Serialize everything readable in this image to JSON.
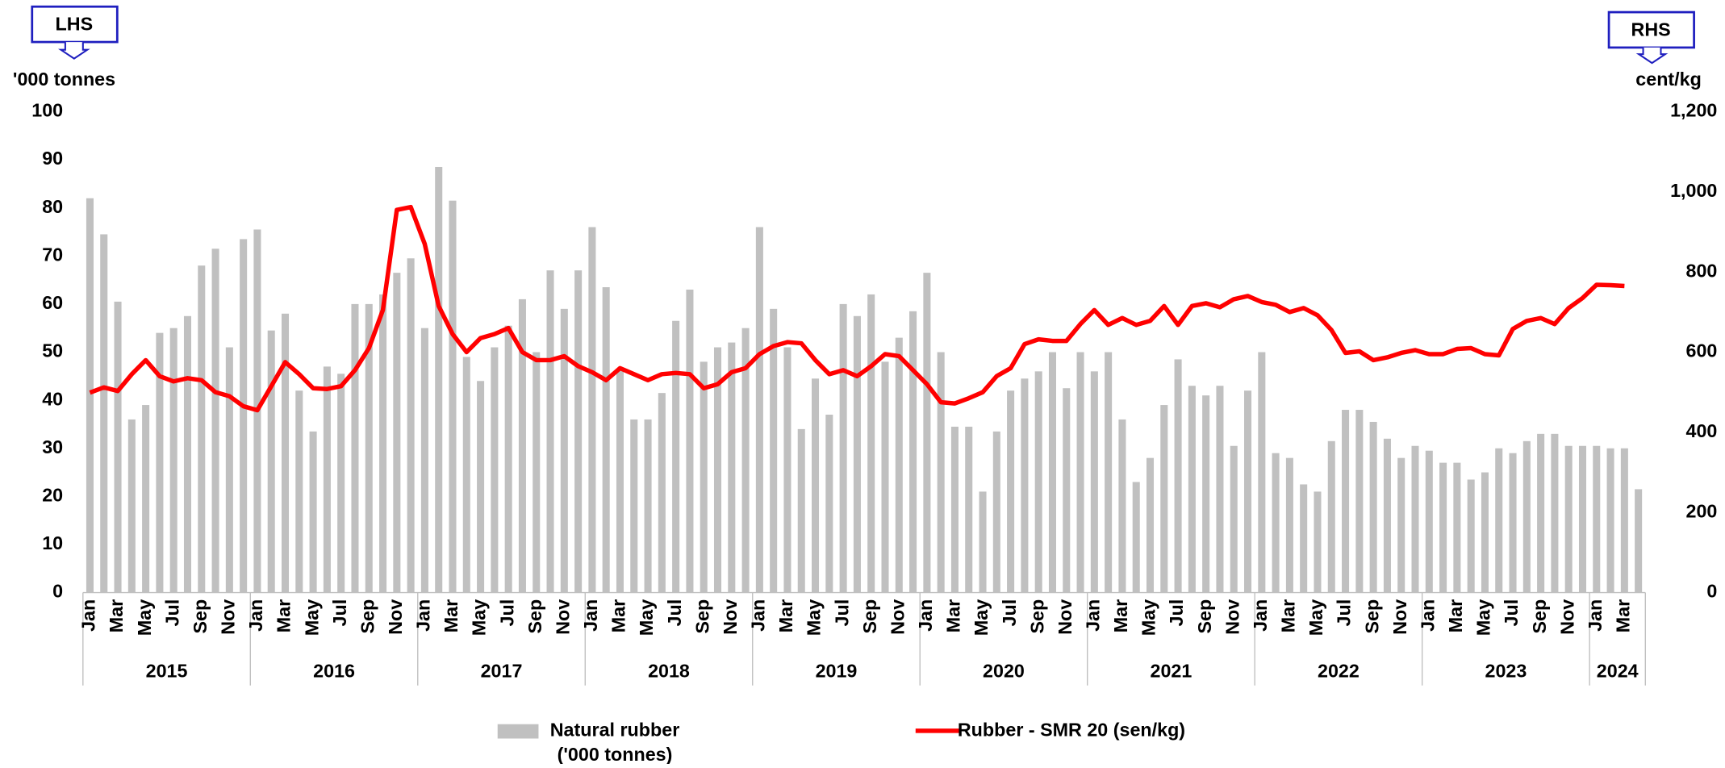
{
  "chart_data": {
    "type": "bar_line",
    "left_axis_tag": "LHS",
    "right_axis_tag": "RHS",
    "ylabel": "'000 tonnes",
    "y2label": "cent/kg",
    "categories": [
      "Jan",
      null,
      "Mar",
      null,
      "May",
      null,
      "Jul",
      null,
      "Sep",
      null,
      "Nov",
      null,
      "Jan",
      null,
      "Mar",
      null,
      "May",
      null,
      "Jul",
      null,
      "Sep",
      null,
      "Nov",
      null,
      "Jan",
      null,
      "Mar",
      null,
      "May",
      null,
      "Jul",
      null,
      "Sep",
      null,
      "Nov",
      null,
      "Jan",
      null,
      "Mar",
      null,
      "May",
      null,
      "Jul",
      null,
      "Sep",
      null,
      "Nov",
      null,
      "Jan",
      null,
      "Mar",
      null,
      "May",
      null,
      "Jul",
      null,
      "Sep",
      null,
      "Nov",
      null,
      "Jan",
      null,
      "Mar",
      null,
      "May",
      null,
      "Jul",
      null,
      "Sep",
      null,
      "Nov",
      null,
      "Jan",
      null,
      "Mar",
      null,
      "May",
      null,
      "Jul",
      null,
      "Sep",
      null,
      "Nov",
      null,
      "Jan",
      null,
      "Mar",
      null,
      "May",
      null,
      "Jul",
      null,
      "Sep",
      null,
      "Nov",
      null,
      "Jan",
      null,
      "Mar",
      null,
      "May",
      null,
      "Jul",
      null,
      "Sep",
      null,
      "Nov",
      null,
      "Jan",
      null,
      "Mar",
      null
    ],
    "years": [
      "2015",
      "2016",
      "2017",
      "2018",
      "2019",
      "2020",
      "2021",
      "2022",
      "2023",
      "2024"
    ],
    "series": [
      {
        "name": "Natural rubber ('000 tonnes)",
        "type": "bar",
        "color": "#c0c0c0",
        "axis": "y",
        "values": [
          82,
          74.5,
          60.5,
          36,
          39,
          54,
          55,
          57.5,
          68,
          71.5,
          51,
          73.5,
          75.5,
          54.5,
          58,
          42,
          33.5,
          47,
          45.5,
          60,
          60,
          62,
          66.5,
          69.5,
          55,
          88.5,
          81.5,
          49,
          44,
          51,
          55.5,
          61,
          50,
          67,
          59,
          67,
          76,
          63.5,
          46.5,
          36,
          36,
          41.5,
          56.5,
          63,
          48,
          51,
          52,
          55,
          76,
          59,
          51,
          34,
          44.5,
          37,
          60,
          57.5,
          62,
          48,
          53,
          58.5,
          66.5,
          50,
          34.5,
          34.5,
          21,
          33.5,
          42,
          44.5,
          46,
          50,
          42.5,
          50,
          46,
          50,
          36,
          23,
          28,
          39,
          48.5,
          43,
          41,
          43,
          30.5,
          42,
          50,
          29,
          28,
          22.5,
          21,
          31.5,
          38,
          38,
          35.5,
          32,
          28,
          30.5,
          29.5,
          27,
          27,
          23.5,
          25,
          30,
          29,
          31.5,
          33,
          33,
          30.5,
          30.5,
          30.5,
          30,
          30,
          21.5
        ]
      },
      {
        "name": "Rubber - SMR 20 (sen/kg)",
        "type": "line",
        "color": "#ff0000",
        "axis": "y2",
        "values": [
          499,
          512,
          503,
          545,
          580,
          540,
          527,
          535,
          530,
          500,
          490,
          465,
          455,
          515,
          575,
          545,
          510,
          508,
          515,
          555,
          610,
          705,
          955,
          962,
          870,
          715,
          645,
          600,
          635,
          645,
          660,
          600,
          580,
          580,
          590,
          565,
          550,
          530,
          560,
          545,
          530,
          545,
          548,
          545,
          510,
          520,
          550,
          560,
          595,
          615,
          625,
          622,
          580,
          545,
          555,
          540,
          565,
          595,
          590,
          555,
          520,
          475,
          472,
          485,
          500,
          540,
          560,
          620,
          632,
          628,
          628,
          670,
          705,
          668,
          685,
          668,
          678,
          715,
          668,
          715,
          722,
          712,
          732,
          740,
          725,
          718,
          700,
          710,
          692,
          655,
          598,
          602,
          580,
          587,
          598,
          605,
          595,
          595,
          608,
          610,
          595,
          592,
          658,
          678,
          685,
          670,
          710,
          735,
          768,
          767,
          765,
          null
        ]
      }
    ],
    "ylim": [
      0,
      100
    ],
    "yticks": [
      0,
      10,
      20,
      30,
      40,
      50,
      60,
      70,
      80,
      90,
      100
    ],
    "y2lim": [
      0,
      1200
    ],
    "y2ticks": [
      0,
      200,
      400,
      600,
      800,
      {
        "value": 1000,
        "label": "1,000"
      },
      {
        "value": 1200,
        "label": "1,200"
      }
    ]
  }
}
